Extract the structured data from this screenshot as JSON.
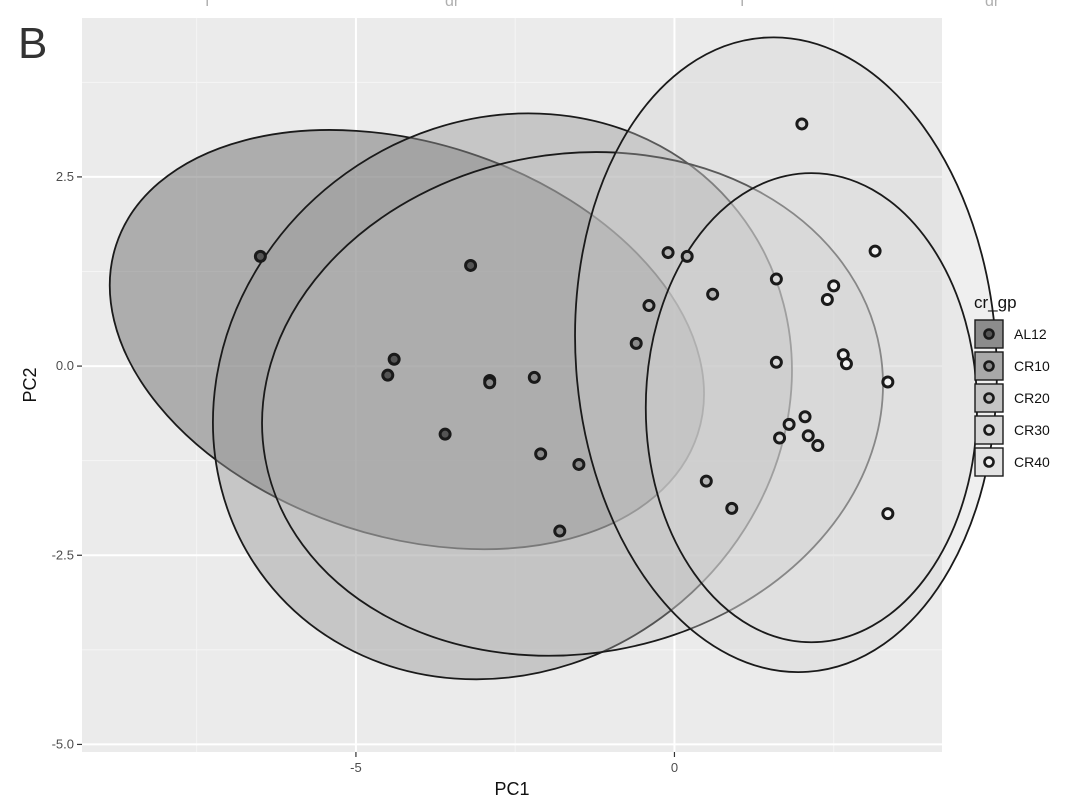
{
  "panel_label": "B",
  "top_cut_labels": [
    "I",
    "dr",
    "I",
    "dr"
  ],
  "colors": {
    "panel_bg": "#ebebeb",
    "grid_major": "#ffffff",
    "grid_minor": "#f5f5f5",
    "point_stroke": "#1a1a1a",
    "ellipse_stroke": "#1a1a1a"
  },
  "chart_data": {
    "type": "scatter",
    "title": "",
    "xlabel": "PC1",
    "ylabel": "PC2",
    "xlim": [
      -9.3,
      4.2
    ],
    "ylim": [
      -5.1,
      4.6
    ],
    "x_ticks": [
      -5,
      0
    ],
    "x_tick_labels": [
      "-5",
      "0"
    ],
    "y_ticks": [
      2.5,
      0,
      -2.5,
      -5
    ],
    "y_tick_labels": [
      "2.5",
      "0.0",
      "-2.5",
      "-5.0"
    ],
    "grid": true,
    "legend": {
      "title": "cr_gp",
      "placement": "right",
      "entries": [
        {
          "label": "AL12",
          "fill": "#8c8c8c",
          "point_fill": "#555555"
        },
        {
          "label": "CR10",
          "fill": "#a9a9a9",
          "point_fill": "#8a8a8a"
        },
        {
          "label": "CR20",
          "fill": "#c4c4c4",
          "point_fill": "#b5b5b5"
        },
        {
          "label": "CR30",
          "fill": "#d6d6d6",
          "point_fill": "#d8d8d8"
        },
        {
          "label": "CR40",
          "fill": "#e3e3e3",
          "point_fill": "#f2f2f2"
        }
      ]
    },
    "ellipses": [
      {
        "group": "AL12",
        "cx": -4.2,
        "cy": 0.35,
        "rx": 4.8,
        "ry": 2.6,
        "angle_deg": -18,
        "fill": "#7a7a7a",
        "opacity": 0.55
      },
      {
        "group": "CR10",
        "cx": -2.7,
        "cy": -0.4,
        "rx": 4.7,
        "ry": 3.6,
        "angle_deg": 38,
        "fill": "#9a9a9a",
        "opacity": 0.45
      },
      {
        "group": "CR20",
        "cx": -1.6,
        "cy": -0.5,
        "rx": 4.9,
        "ry": 3.3,
        "angle_deg": 10,
        "fill": "#c0c0c0",
        "opacity": 0.35
      },
      {
        "group": "CR30",
        "cx": 1.75,
        "cy": 0.15,
        "rx": 3.3,
        "ry": 4.2,
        "angle_deg": 4,
        "fill": "#d0d0d0",
        "opacity": 0.35
      },
      {
        "group": "CR40",
        "cx": 2.15,
        "cy": -0.55,
        "rx": 2.6,
        "ry": 3.1,
        "angle_deg": 0,
        "fill": "#dcdcdc",
        "opacity": 0.35
      }
    ],
    "series": [
      {
        "name": "AL12",
        "x": [
          -6.5,
          -3.2,
          -4.4,
          -4.5,
          -2.9,
          -3.6
        ],
        "y": [
          1.45,
          1.33,
          0.09,
          -0.12,
          -0.19,
          -0.9
        ]
      },
      {
        "name": "CR10",
        "x": [
          -2.9,
          -2.2,
          -2.1,
          -1.5,
          -1.8,
          -0.6
        ],
        "y": [
          -0.22,
          -0.15,
          -1.16,
          -1.3,
          -2.18,
          0.3
        ]
      },
      {
        "name": "CR20",
        "x": [
          -0.4,
          -0.1,
          0.2,
          0.6,
          0.5,
          0.9
        ],
        "y": [
          0.8,
          1.5,
          1.45,
          0.95,
          -1.52,
          -1.88
        ]
      },
      {
        "name": "CR30",
        "x": [
          2.0,
          1.6,
          1.6,
          1.65,
          1.8,
          2.05,
          2.1,
          2.25
        ],
        "y": [
          3.2,
          1.15,
          0.05,
          -0.95,
          -0.77,
          -0.67,
          -0.92,
          -1.05
        ]
      },
      {
        "name": "CR40",
        "x": [
          3.15,
          2.5,
          2.4,
          2.65,
          2.7,
          3.35,
          3.35
        ],
        "y": [
          1.52,
          1.06,
          0.88,
          0.15,
          0.03,
          -0.21,
          -1.95
        ]
      }
    ]
  }
}
